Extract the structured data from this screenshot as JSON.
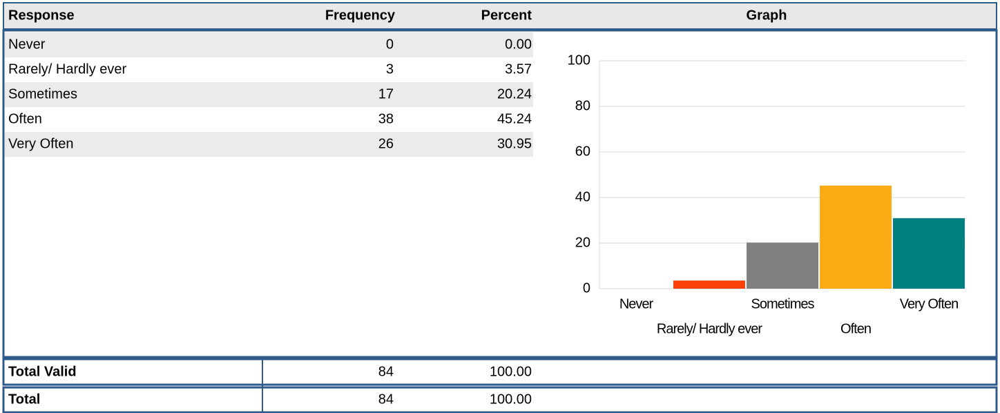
{
  "table": {
    "headers": [
      "Response",
      "Frequency",
      "Percent",
      "Graph"
    ],
    "rows": [
      [
        "Never",
        "0",
        "0.00"
      ],
      [
        "Rarely/ Hardly ever",
        "3",
        "3.57"
      ],
      [
        "Sometimes",
        "17",
        "20.24"
      ],
      [
        "Often",
        "38",
        "45.24"
      ],
      [
        "Very Often",
        "26",
        "30.95"
      ]
    ],
    "totals": [
      [
        "Total Valid",
        "84",
        "100.00"
      ],
      [
        "Total",
        "84",
        "100.00"
      ]
    ]
  },
  "chart_data": {
    "type": "bar",
    "categories": [
      "Never",
      "Rarely/ Hardly ever",
      "Sometimes",
      "Often",
      "Very Often"
    ],
    "values": [
      0,
      3.57,
      20.24,
      45.24,
      30.95
    ],
    "colors": [
      "#808080",
      "#fc4108",
      "#808080",
      "#fcab14",
      "#008080"
    ],
    "ylim": [
      0,
      100
    ],
    "yticks": [
      0,
      20,
      40,
      60,
      80,
      100
    ],
    "grid": true
  }
}
